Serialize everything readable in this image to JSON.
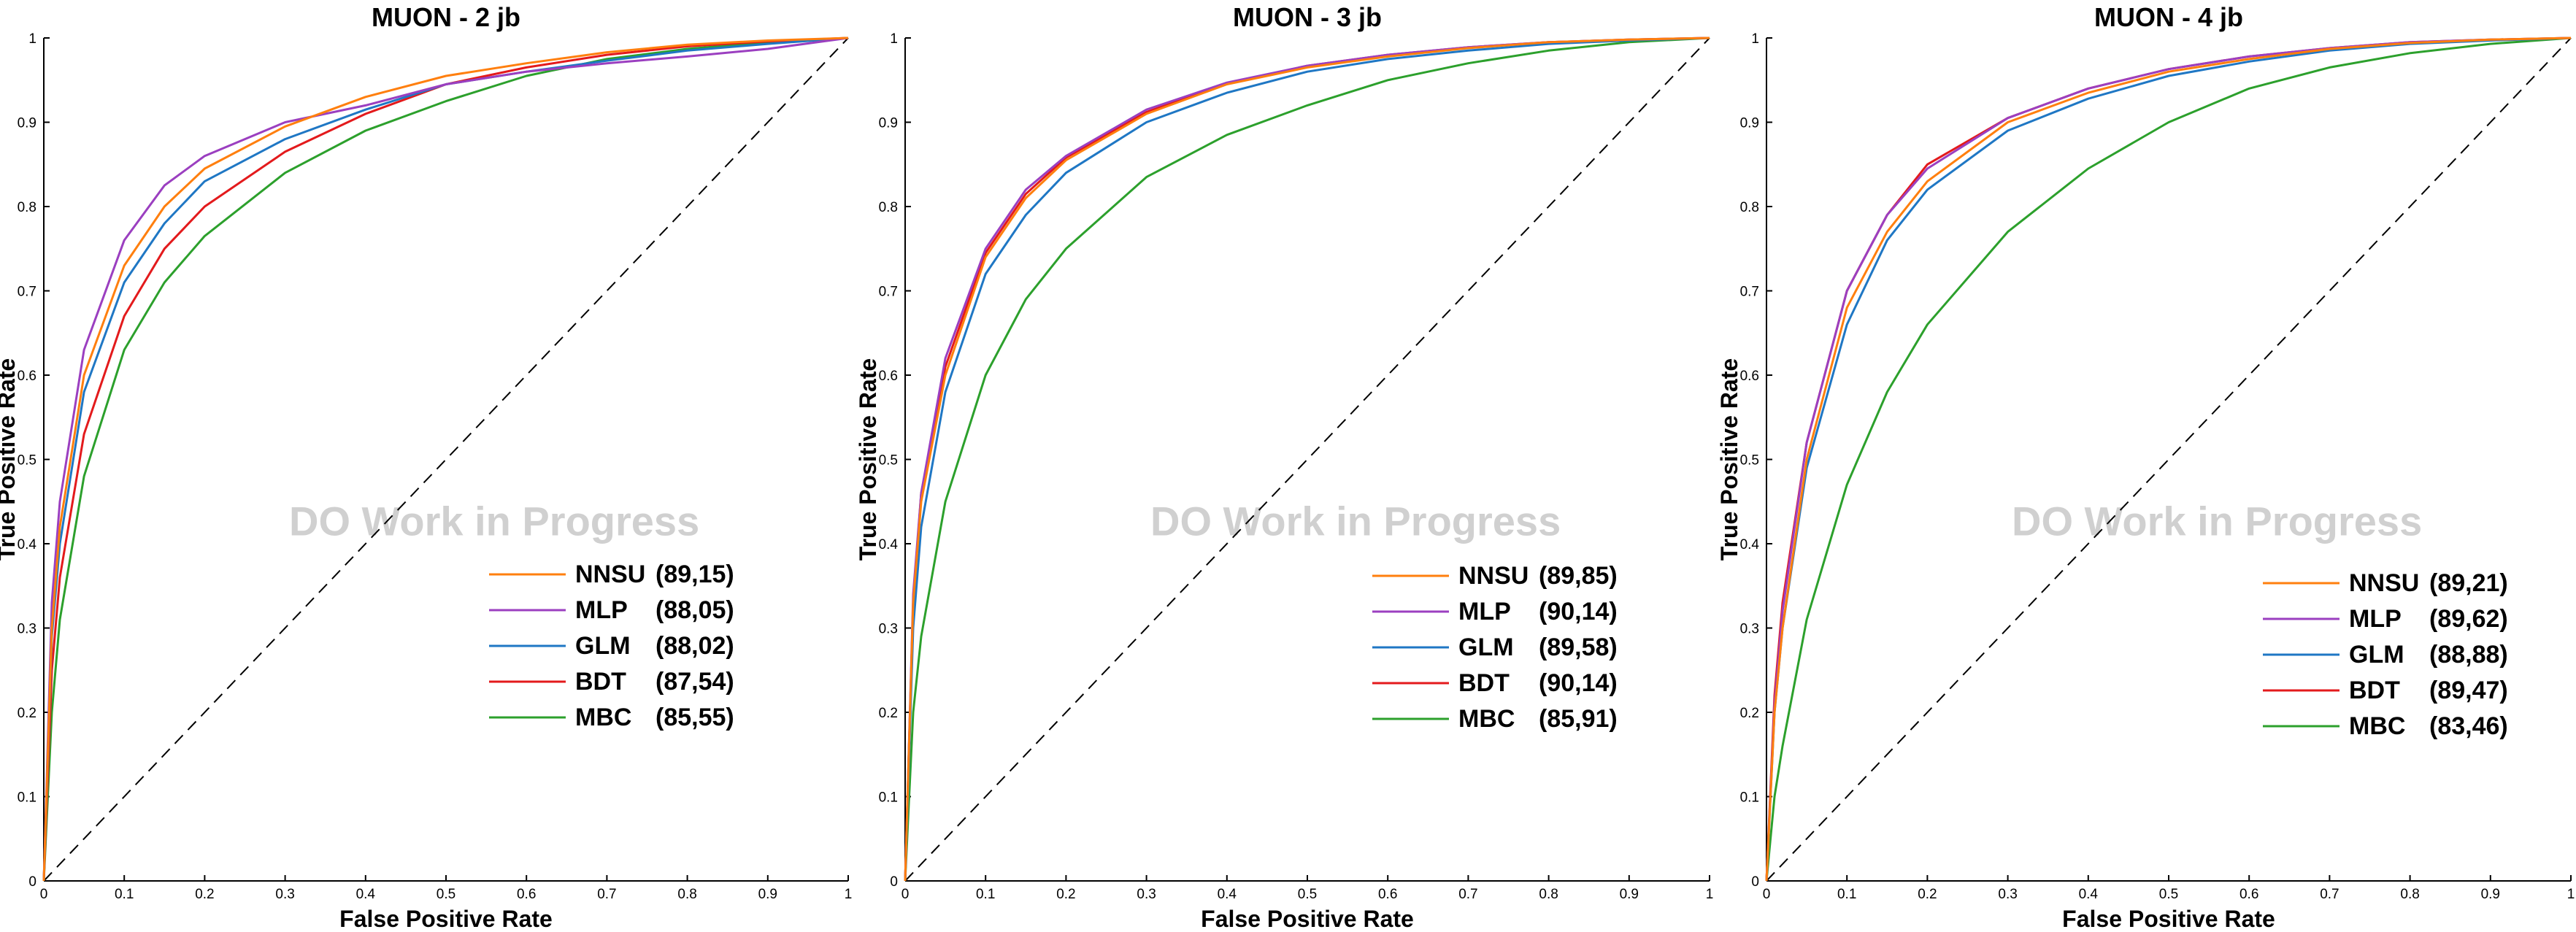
{
  "colors": {
    "NNSU": "#ff7f0e",
    "MLP": "#9b3fc0",
    "GLM": "#1f77c4",
    "BDT": "#e31a1c",
    "MBC": "#2ca02c",
    "diagonal": "#000000",
    "watermark": "#d0d0d0"
  },
  "chart_data": [
    {
      "type": "line",
      "title": "MUON - 2 jb",
      "xlabel": "False Positive Rate",
      "ylabel": "True Positive Rate",
      "watermark": "DO Work in Progress",
      "xlim": [
        0,
        1
      ],
      "ylim": [
        0,
        1
      ],
      "xticks": [
        "0",
        "0.1",
        "0.2",
        "0.3",
        "0.4",
        "0.5",
        "0.6",
        "0.7",
        "0.8",
        "0.9",
        "1"
      ],
      "yticks": [
        "0",
        "0.1",
        "0.2",
        "0.3",
        "0.4",
        "0.5",
        "0.6",
        "0.7",
        "0.8",
        "0.9",
        "1"
      ],
      "grid": false,
      "legend_position": "lower-right",
      "diagonal": true,
      "series": [
        {
          "name": "NNSU",
          "auc_label": "(89,15)",
          "x": [
            0,
            0.01,
            0.02,
            0.05,
            0.1,
            0.15,
            0.2,
            0.3,
            0.4,
            0.5,
            0.6,
            0.7,
            0.8,
            0.9,
            1
          ],
          "y": [
            0,
            0.3,
            0.42,
            0.6,
            0.73,
            0.8,
            0.845,
            0.895,
            0.93,
            0.955,
            0.97,
            0.983,
            0.992,
            0.997,
            1
          ]
        },
        {
          "name": "MLP",
          "auc_label": "(88,05)",
          "x": [
            0,
            0.01,
            0.02,
            0.05,
            0.1,
            0.15,
            0.2,
            0.3,
            0.4,
            0.5,
            0.6,
            0.7,
            0.8,
            0.9,
            1
          ],
          "y": [
            0,
            0.33,
            0.45,
            0.63,
            0.76,
            0.825,
            0.86,
            0.9,
            0.92,
            0.945,
            0.96,
            0.97,
            0.978,
            0.987,
            1
          ]
        },
        {
          "name": "GLM",
          "auc_label": "(88,02)",
          "x": [
            0,
            0.01,
            0.02,
            0.05,
            0.1,
            0.15,
            0.2,
            0.3,
            0.4,
            0.5,
            0.6,
            0.7,
            0.8,
            0.9,
            1
          ],
          "y": [
            0,
            0.29,
            0.4,
            0.58,
            0.71,
            0.78,
            0.83,
            0.88,
            0.915,
            0.945,
            0.96,
            0.973,
            0.985,
            0.993,
            1
          ]
        },
        {
          "name": "BDT",
          "auc_label": "(87,54)",
          "x": [
            0,
            0.01,
            0.02,
            0.05,
            0.1,
            0.15,
            0.2,
            0.3,
            0.4,
            0.5,
            0.6,
            0.7,
            0.8,
            0.9,
            1
          ],
          "y": [
            0,
            0.25,
            0.36,
            0.53,
            0.67,
            0.75,
            0.8,
            0.865,
            0.91,
            0.945,
            0.965,
            0.98,
            0.99,
            0.996,
            1
          ]
        },
        {
          "name": "MBC",
          "auc_label": "(85,55)",
          "x": [
            0,
            0.01,
            0.02,
            0.05,
            0.1,
            0.15,
            0.2,
            0.3,
            0.4,
            0.5,
            0.6,
            0.7,
            0.8,
            0.9,
            1
          ],
          "y": [
            0,
            0.2,
            0.31,
            0.48,
            0.63,
            0.71,
            0.765,
            0.84,
            0.89,
            0.925,
            0.955,
            0.975,
            0.987,
            0.995,
            1
          ]
        }
      ]
    },
    {
      "type": "line",
      "title": "MUON - 3 jb",
      "xlabel": "False Positive Rate",
      "ylabel": "True Positive Rate",
      "watermark": "DO Work in Progress",
      "xlim": [
        0,
        1
      ],
      "ylim": [
        0,
        1
      ],
      "xticks": [
        "0",
        "0.1",
        "0.2",
        "0.3",
        "0.4",
        "0.5",
        "0.6",
        "0.7",
        "0.8",
        "0.9",
        "1"
      ],
      "yticks": [
        "0",
        "0.1",
        "0.2",
        "0.3",
        "0.4",
        "0.5",
        "0.6",
        "0.7",
        "0.8",
        "0.9",
        "1"
      ],
      "grid": false,
      "legend_position": "lower-right",
      "diagonal": true,
      "series": [
        {
          "name": "NNSU",
          "auc_label": "(89,85)",
          "x": [
            0,
            0.01,
            0.02,
            0.05,
            0.1,
            0.15,
            0.2,
            0.3,
            0.4,
            0.5,
            0.6,
            0.7,
            0.8,
            0.9,
            1
          ],
          "y": [
            0,
            0.33,
            0.45,
            0.6,
            0.74,
            0.81,
            0.855,
            0.91,
            0.945,
            0.965,
            0.978,
            0.988,
            0.995,
            0.998,
            1
          ]
        },
        {
          "name": "MLP",
          "auc_label": "(90,14)",
          "x": [
            0,
            0.01,
            0.02,
            0.05,
            0.1,
            0.15,
            0.2,
            0.3,
            0.4,
            0.5,
            0.6,
            0.7,
            0.8,
            0.9,
            1
          ],
          "y": [
            0,
            0.34,
            0.46,
            0.62,
            0.75,
            0.82,
            0.86,
            0.915,
            0.947,
            0.967,
            0.98,
            0.989,
            0.995,
            0.998,
            1
          ]
        },
        {
          "name": "GLM",
          "auc_label": "(89,58)",
          "x": [
            0,
            0.01,
            0.02,
            0.05,
            0.1,
            0.15,
            0.2,
            0.3,
            0.4,
            0.5,
            0.6,
            0.7,
            0.8,
            0.9,
            1
          ],
          "y": [
            0,
            0.3,
            0.42,
            0.58,
            0.72,
            0.79,
            0.84,
            0.9,
            0.935,
            0.96,
            0.975,
            0.985,
            0.993,
            0.997,
            1
          ]
        },
        {
          "name": "BDT",
          "auc_label": "(90,14)",
          "x": [
            0,
            0.01,
            0.02,
            0.05,
            0.1,
            0.15,
            0.2,
            0.3,
            0.4,
            0.5,
            0.6,
            0.7,
            0.8,
            0.9,
            1
          ],
          "y": [
            0,
            0.33,
            0.46,
            0.61,
            0.745,
            0.815,
            0.858,
            0.912,
            0.946,
            0.967,
            0.98,
            0.989,
            0.995,
            0.998,
            1
          ]
        },
        {
          "name": "MBC",
          "auc_label": "(85,91)",
          "x": [
            0,
            0.01,
            0.02,
            0.05,
            0.1,
            0.15,
            0.2,
            0.3,
            0.4,
            0.5,
            0.6,
            0.7,
            0.8,
            0.9,
            1
          ],
          "y": [
            0,
            0.2,
            0.29,
            0.45,
            0.6,
            0.69,
            0.75,
            0.835,
            0.885,
            0.92,
            0.95,
            0.97,
            0.985,
            0.995,
            1
          ]
        }
      ]
    },
    {
      "type": "line",
      "title": "MUON - 4 jb",
      "xlabel": "False Positive Rate",
      "ylabel": "True Positive Rate",
      "watermark": "DO Work in Progress",
      "xlim": [
        0,
        1
      ],
      "ylim": [
        0,
        1
      ],
      "xticks": [
        "0",
        "0.1",
        "0.2",
        "0.3",
        "0.4",
        "0.5",
        "0.6",
        "0.7",
        "0.8",
        "0.9",
        "1"
      ],
      "yticks": [
        "0",
        "0.1",
        "0.2",
        "0.3",
        "0.4",
        "0.5",
        "0.6",
        "0.7",
        "0.8",
        "0.9",
        "1"
      ],
      "grid": false,
      "legend_position": "lower-right",
      "diagonal": true,
      "series": [
        {
          "name": "NNSU",
          "auc_label": "(89,21)",
          "x": [
            0,
            0.01,
            0.02,
            0.05,
            0.1,
            0.15,
            0.2,
            0.3,
            0.4,
            0.5,
            0.6,
            0.7,
            0.8,
            0.9,
            1
          ],
          "y": [
            0,
            0.2,
            0.3,
            0.5,
            0.68,
            0.77,
            0.83,
            0.9,
            0.935,
            0.96,
            0.975,
            0.987,
            0.994,
            0.998,
            1
          ]
        },
        {
          "name": "MLP",
          "auc_label": "(89,62)",
          "x": [
            0,
            0.01,
            0.02,
            0.05,
            0.1,
            0.15,
            0.2,
            0.3,
            0.4,
            0.5,
            0.6,
            0.7,
            0.8,
            0.9,
            1
          ],
          "y": [
            0,
            0.21,
            0.32,
            0.52,
            0.7,
            0.79,
            0.845,
            0.905,
            0.94,
            0.963,
            0.978,
            0.988,
            0.995,
            0.998,
            1
          ]
        },
        {
          "name": "GLM",
          "auc_label": "(88,88)",
          "x": [
            0,
            0.01,
            0.02,
            0.05,
            0.1,
            0.15,
            0.2,
            0.3,
            0.4,
            0.5,
            0.6,
            0.7,
            0.8,
            0.9,
            1
          ],
          "y": [
            0,
            0.2,
            0.3,
            0.49,
            0.66,
            0.76,
            0.82,
            0.89,
            0.928,
            0.955,
            0.972,
            0.985,
            0.993,
            0.997,
            1
          ]
        },
        {
          "name": "BDT",
          "auc_label": "(89,47)",
          "x": [
            0,
            0.01,
            0.02,
            0.05,
            0.1,
            0.15,
            0.2,
            0.3,
            0.4,
            0.5,
            0.6,
            0.7,
            0.8,
            0.9,
            1
          ],
          "y": [
            0,
            0.22,
            0.33,
            0.52,
            0.7,
            0.79,
            0.85,
            0.905,
            0.94,
            0.963,
            0.978,
            0.988,
            0.995,
            0.998,
            1
          ]
        },
        {
          "name": "MBC",
          "auc_label": "(83,46)",
          "x": [
            0,
            0.01,
            0.02,
            0.05,
            0.1,
            0.15,
            0.2,
            0.3,
            0.4,
            0.5,
            0.6,
            0.7,
            0.8,
            0.9,
            1
          ],
          "y": [
            0,
            0.1,
            0.16,
            0.31,
            0.47,
            0.58,
            0.66,
            0.77,
            0.845,
            0.9,
            0.94,
            0.965,
            0.982,
            0.993,
            1
          ]
        }
      ]
    }
  ]
}
